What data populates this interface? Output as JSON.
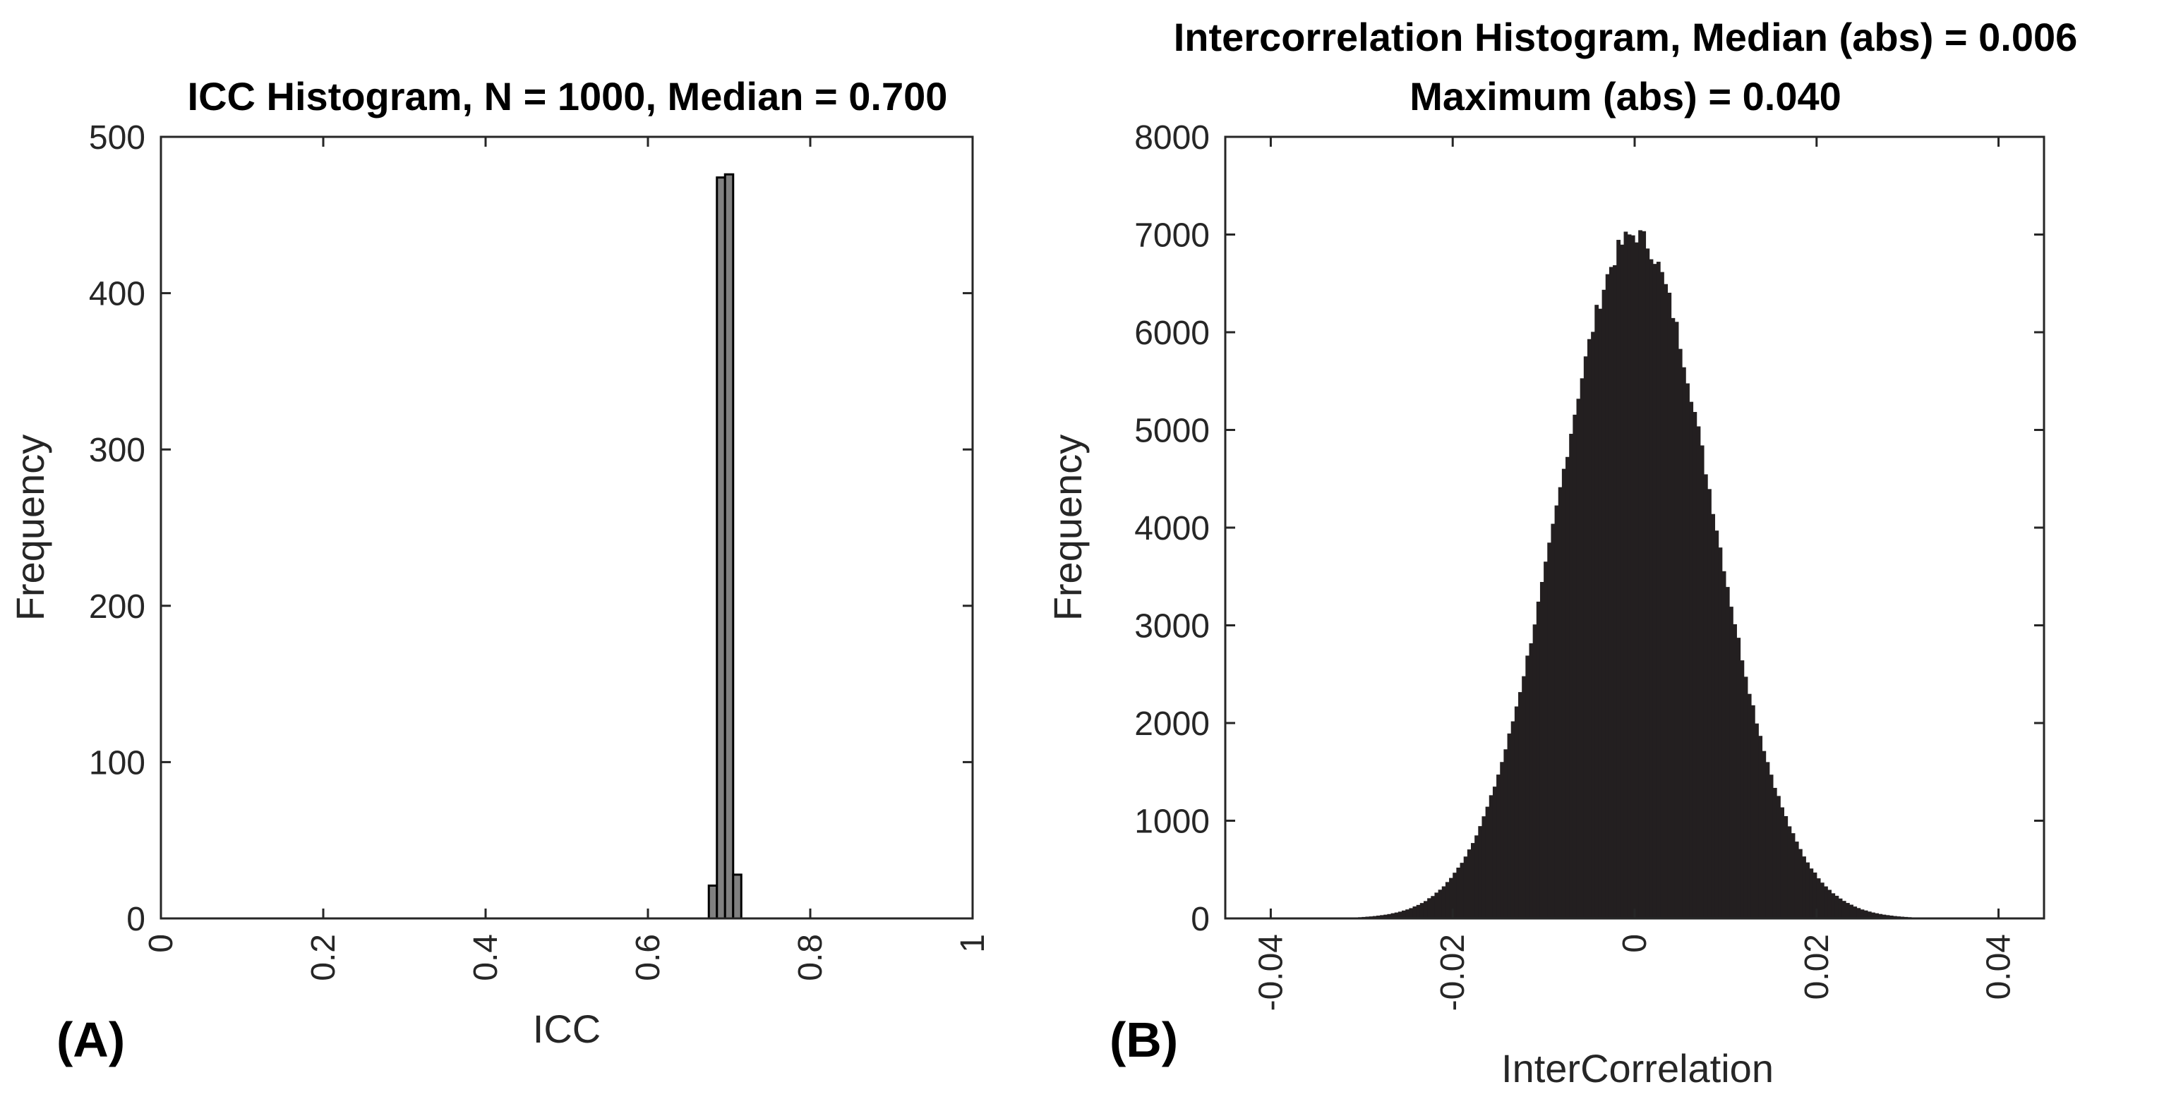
{
  "chart_data": [
    {
      "type": "bar",
      "panel_label": "(A)",
      "title": "ICC Histogram, N = 1000, Median = 0.700",
      "xlabel": "ICC",
      "ylabel": "Frequency",
      "xlim": [
        0,
        1
      ],
      "ylim": [
        0,
        500
      ],
      "xticks": [
        "0",
        "0.2",
        "0.4",
        "0.6",
        "0.8",
        "1"
      ],
      "xtick_values": [
        0,
        0.2,
        0.4,
        0.6,
        0.8,
        1
      ],
      "yticks": [
        "0",
        "100",
        "200",
        "300",
        "400",
        "500"
      ],
      "ytick_values": [
        0,
        100,
        200,
        300,
        400,
        500
      ],
      "bin_width": 0.01,
      "bins": [
        {
          "x": 0.68,
          "value": 21
        },
        {
          "x": 0.69,
          "value": 474
        },
        {
          "x": 0.7,
          "value": 476
        },
        {
          "x": 0.71,
          "value": 28
        }
      ],
      "bar_color": "#808080",
      "grid": false
    },
    {
      "type": "bar",
      "panel_label": "(B)",
      "title_lines": [
        "Intercorrelation Histogram, Median (abs) = 0.006",
        "Maximum (abs) = 0.040"
      ],
      "xlabel": "InterCorrelation",
      "ylabel": "Frequency",
      "xlim": [
        -0.045,
        0.045
      ],
      "ylim": [
        0,
        8000
      ],
      "xticks": [
        "-0.04",
        "-0.02",
        "0",
        "0.02",
        "0.04"
      ],
      "xtick_values": [
        -0.04,
        -0.02,
        0,
        0.02,
        0.04
      ],
      "yticks": [
        "0",
        "1000",
        "2000",
        "3000",
        "4000",
        "5000",
        "6000",
        "7000",
        "8000"
      ],
      "ytick_values": [
        0,
        1000,
        2000,
        3000,
        4000,
        5000,
        6000,
        7000,
        8000
      ],
      "distribution": "approximately normal",
      "center": 0,
      "peak": 7000,
      "std": 0.0085,
      "range": [
        -0.04,
        0.04
      ],
      "bin_count": 200,
      "bar_color": "#231f20",
      "grid": false
    }
  ]
}
